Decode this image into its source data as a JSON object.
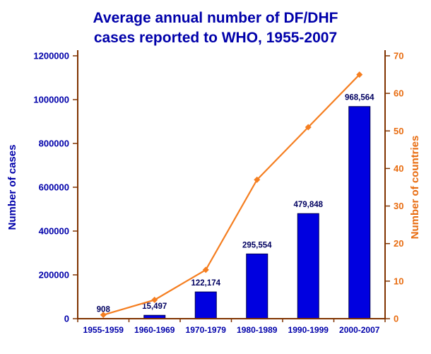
{
  "header": {
    "title_lines": [
      "Average annual number of DF/DHF",
      "cases reported to WHO, 1955-2007"
    ]
  },
  "chart_data": {
    "type": "bar",
    "title": "Average annual number of DF/DHF cases reported to WHO, 1955-2007",
    "categories": [
      "1955-1959",
      "1960-1969",
      "1970-1979",
      "1980-1989",
      "1990-1999",
      "2000-2007"
    ],
    "series": [
      {
        "name": "Number of cases",
        "type": "bar",
        "axis": "left",
        "values": [
          908,
          15497,
          122174,
          295554,
          479848,
          968564
        ],
        "labels": [
          "908",
          "15,497",
          "122,174",
          "295,554",
          "479,848",
          "968,564"
        ]
      },
      {
        "name": "Number of countries",
        "type": "line",
        "axis": "right",
        "values": [
          1,
          5,
          13,
          37,
          51,
          65
        ]
      }
    ],
    "left_axis": {
      "label": "Number of cases",
      "min": 0,
      "max": 1200000,
      "tick_step": 200000,
      "ticks": [
        "0",
        "200000",
        "400000",
        "600000",
        "800000",
        "1000000",
        "1200000"
      ]
    },
    "right_axis": {
      "label": "Number of countries",
      "min": 0,
      "max": 70,
      "tick_step": 10,
      "ticks": [
        "0",
        "10",
        "20",
        "30",
        "40",
        "50",
        "60",
        "70"
      ]
    },
    "legend": "none",
    "grid": false,
    "colors": {
      "title": "#0000aa",
      "left_text": "#0000aa",
      "right_text": "#e86c10",
      "bar": "#0000e0",
      "bar_edge": "#000050",
      "bar_label": "#000060",
      "line": "#f57e20",
      "axis": "#803300"
    }
  }
}
